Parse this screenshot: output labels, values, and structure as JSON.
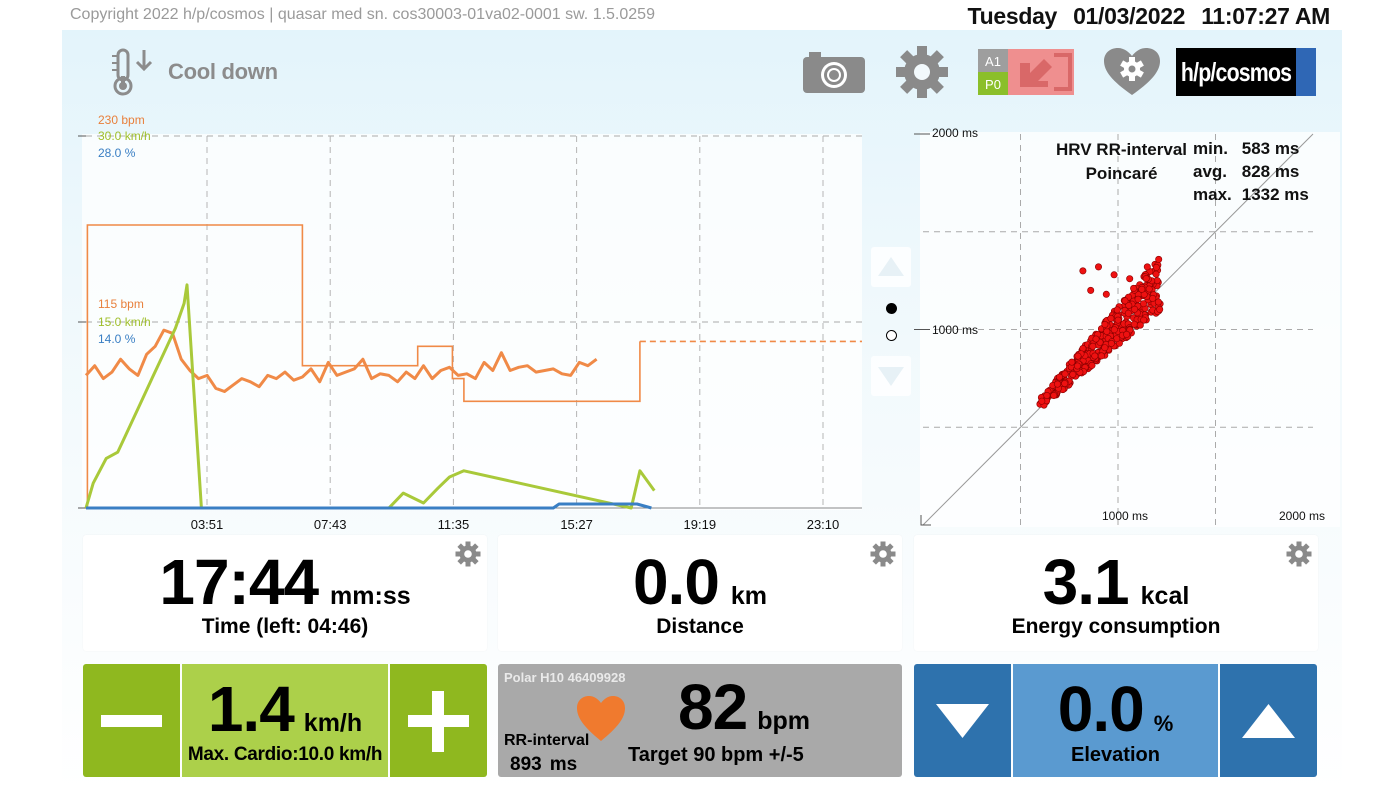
{
  "header": {
    "copyright": "Copyright 2022 h/p/cosmos | quasar  med  sn. cos30003-01va02-0001  sw. 1.5.0259",
    "day": "Tuesday",
    "date": "01/03/2022",
    "time": "11:07:27 AM"
  },
  "toolbar": {
    "mode_label": "Cool down",
    "mode_icon": "thermometer-down-icon",
    "badge_a": "A1",
    "badge_p": "P0",
    "brand": "h/p/cosmos",
    "icons": [
      "camera-icon",
      "gear-icon",
      "a1-p0-profile-icon",
      "heart-gear-icon"
    ]
  },
  "chart": {
    "colors": {
      "heart_rate": "#f08a47",
      "speed": "#a9c93a",
      "elevation": "#3a7fc4"
    },
    "axis_top": {
      "hr": "230 bpm",
      "speed": "30.0 km/h",
      "elevation": "28.0 %"
    },
    "axis_mid": {
      "hr": "115 bpm",
      "speed": "15.0 km/h",
      "elevation": "14.0 %"
    },
    "x_ticks": [
      "03:51",
      "07:43",
      "11:35",
      "15:27",
      "19:19",
      "23:10"
    ]
  },
  "chart_data": {
    "type": "line",
    "x_ticks": [
      "03:51",
      "07:43",
      "11:35",
      "15:27",
      "19:19",
      "23:10"
    ],
    "x_range_min": [
      0,
      26.9
    ],
    "series": [
      {
        "key": "heart_rate",
        "x": [
          0,
          0.3,
          0.6,
          0.9,
          1.2,
          1.5,
          1.8,
          2.1,
          2.4,
          2.7,
          3.0,
          3.3,
          3.6,
          3.9,
          4.2,
          4.5,
          4.8,
          5.1,
          5.4,
          5.7,
          6.0,
          6.3,
          6.6,
          6.9,
          7.2,
          7.5,
          7.8,
          8.1,
          8.4,
          8.7,
          9.0,
          9.3,
          9.6,
          9.9,
          10.2,
          10.5,
          10.8,
          11.1,
          11.4,
          11.7,
          12.0,
          12.3,
          12.6,
          12.9,
          13.2,
          13.5,
          13.8,
          14.1,
          14.4,
          14.7,
          15.0,
          15.3,
          15.6,
          15.9,
          16.2,
          16.5,
          16.8,
          17.1,
          17.4,
          17.7
        ],
        "values": [
          82,
          88,
          80,
          84,
          92,
          86,
          82,
          95,
          100,
          110,
          108,
          92,
          85,
          80,
          82,
          74,
          72,
          76,
          80,
          78,
          75,
          82,
          80,
          84,
          79,
          81,
          86,
          78,
          90,
          82,
          84,
          86,
          92,
          80,
          83,
          82,
          78,
          84,
          80,
          88,
          80,
          85,
          87,
          82,
          83,
          80,
          90,
          85,
          96,
          85,
          87,
          88,
          84,
          85,
          86,
          83,
          82,
          90,
          88,
          92
        ]
      },
      {
        "key": "hr_target",
        "x": [
          0.05,
          0.05,
          7.5,
          7.5,
          11.5,
          11.5,
          12.7,
          12.7,
          13.1,
          13.1,
          19.2,
          19.2,
          26.9
        ],
        "values": [
          0,
          175,
          175,
          88,
          88,
          100,
          100,
          80,
          80,
          66,
          66,
          103,
          103
        ]
      },
      {
        "key": "speed",
        "x": [
          0,
          0.25,
          0.25,
          0.7,
          0.7,
          1.1,
          1.1,
          1.5,
          1.5,
          1.9,
          1.9,
          2.3,
          2.3,
          2.7,
          2.7,
          3.1,
          3.1,
          3.4,
          3.4,
          3.5,
          3.5,
          4.0,
          4.0,
          10.5,
          10.5,
          11.0,
          11.0,
          11.7,
          11.7,
          12.2,
          12.2,
          12.6,
          12.6,
          13.1,
          13.1,
          18.9,
          18.9,
          19.2,
          19.2,
          19.7
        ],
        "values": [
          0,
          2,
          2,
          4,
          4,
          4.5,
          4.5,
          6.5,
          6.5,
          8.5,
          8.5,
          10.5,
          10.5,
          12.5,
          12.5,
          14.5,
          14.5,
          16.5,
          16.5,
          18,
          18,
          0,
          0,
          0,
          0,
          1.2,
          1.2,
          0.4,
          0.4,
          1.6,
          1.6,
          2.5,
          2.5,
          3,
          3,
          0,
          0,
          3,
          3,
          1.4
        ]
      },
      {
        "key": "elevation",
        "x": [
          0,
          16.2,
          16.4,
          19.1,
          19.6
        ],
        "values": [
          0,
          0,
          0.3,
          0.3,
          0
        ]
      }
    ]
  },
  "poincare": {
    "title1": "HRV RR-interval",
    "title2": "Poincaré",
    "stats": [
      {
        "k": "min.",
        "v": "583 ms"
      },
      {
        "k": "avg.",
        "v": "828 ms"
      },
      {
        "k": "max.",
        "v": "1332 ms"
      }
    ],
    "y_top": "2000 ms",
    "y_mid": "1000 ms",
    "x_mid": "1000 ms",
    "x_max": "2000 ms",
    "point_color": "#ee1111",
    "range_ms": [
      0,
      2000
    ]
  },
  "tiles": {
    "time": {
      "value": "17:44",
      "unit": "mm:ss",
      "caption": "Time (left: 04:46)"
    },
    "distance": {
      "value": "0.0",
      "unit": "km",
      "caption": "Distance"
    },
    "energy": {
      "value": "3.1",
      "unit": "kcal",
      "caption": "Energy consumption"
    }
  },
  "speed": {
    "value": "1.4",
    "unit": "km/h",
    "caption": "Max. Cardio:10.0 km/h"
  },
  "heart": {
    "sensor": "Polar H10 46409928",
    "rr_label": "RR-interval",
    "rr_value": "893",
    "rr_unit": "ms",
    "value": "82",
    "unit": "bpm",
    "target": "Target 90 bpm +/-5"
  },
  "elevation": {
    "value": "0.0",
    "unit": "%",
    "caption": "Elevation"
  }
}
